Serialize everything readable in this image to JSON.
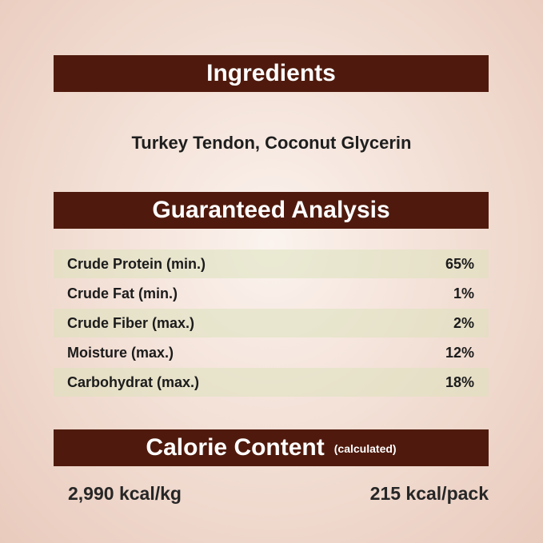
{
  "ingredients": {
    "title": "Ingredients",
    "text": "Turkey Tendon, Coconut Glycerin"
  },
  "analysis": {
    "title": "Guaranteed Analysis",
    "rows": [
      {
        "label": "Crude Protein (min.)",
        "value": "65%"
      },
      {
        "label": "Crude Fat (min.)",
        "value": "1%"
      },
      {
        "label": "Crude Fiber (max.)",
        "value": "2%"
      },
      {
        "label": "Moisture (max.)",
        "value": "12%"
      },
      {
        "label": "Carbohydrat (max.)",
        "value": "18%"
      }
    ]
  },
  "calorie": {
    "title": "Calorie Content",
    "note": "(calculated)",
    "per_kg": "2,990 kcal/kg",
    "per_pack": "215 kcal/pack"
  },
  "colors": {
    "banner": "#4f1a0d",
    "row_shade": "#e4e5c6",
    "background": "#f3e0d6"
  }
}
